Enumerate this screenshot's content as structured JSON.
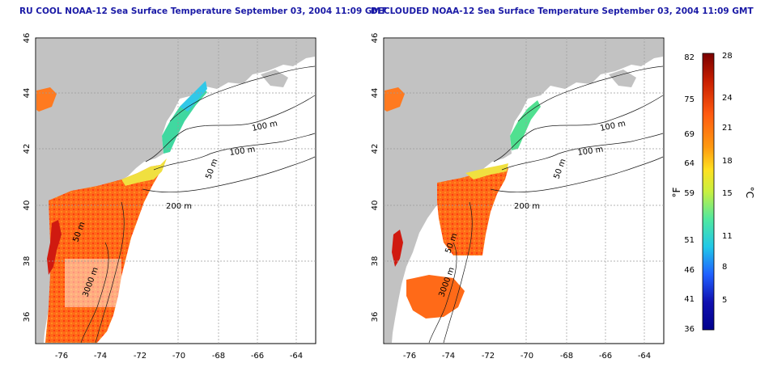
{
  "titles": {
    "left": "RU COOL NOAA-12 Sea Surface Temperature September 03, 2004 11:09 GMT",
    "right": "DECLOUDED NOAA-12 Sea Surface Temperature September 03, 2004 11:09 GMT"
  },
  "map": {
    "lon_ticks": [
      "-76",
      "-74",
      "-72",
      "-70",
      "-68",
      "-66",
      "-64"
    ],
    "lat_ticks": [
      "46",
      "44",
      "42",
      "40",
      "38",
      "36"
    ],
    "contour_labels": [
      "100 m",
      "100 m",
      "50 m",
      "200 m",
      "50 m",
      "3000 m"
    ],
    "land_color": "#c2c2c2",
    "water_color": "#ffffff"
  },
  "colorbar": {
    "fahrenheit_ticks": [
      "82",
      "75",
      "69",
      "64",
      "59",
      "51",
      "46",
      "41",
      "36"
    ],
    "celsius_ticks": [
      "28",
      "24",
      "21",
      "18",
      "15",
      "11",
      "8",
      "5"
    ],
    "fahrenheit_unit": "°F",
    "celsius_unit": "°C",
    "colors": [
      "#7a0000",
      "#c81e00",
      "#ff5a10",
      "#ff9a10",
      "#ffe020",
      "#c8f040",
      "#50e8a0",
      "#20c8e8",
      "#2060ff",
      "#1010b0",
      "#00008c"
    ]
  }
}
